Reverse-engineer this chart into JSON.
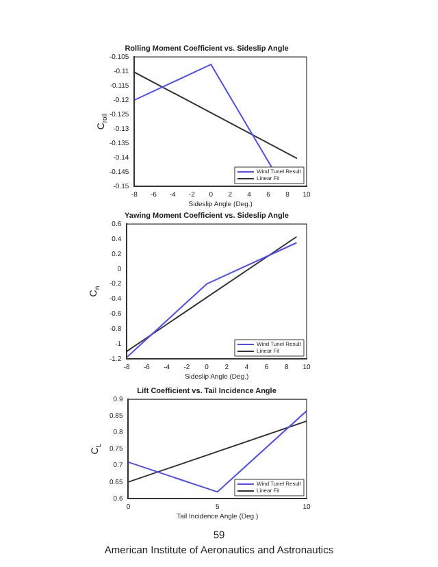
{
  "chart_data": [
    {
      "type": "line",
      "title": "Rolling Moment Coefficient vs. Sideslip Angle",
      "xlabel": "Sideslip Angle (Deg.)",
      "ylabel": "C$_{roll}$",
      "series": [
        {
          "name": "Wind Tunel Result",
          "color": "#4c4cff",
          "x": [
            -8,
            0,
            6.5
          ],
          "values": [
            -0.12,
            -0.1076,
            -0.1442
          ]
        },
        {
          "name": "Linear Fit",
          "color": "#333333",
          "x": [
            -8,
            9
          ],
          "values": [
            -0.1103,
            -0.1403
          ]
        }
      ],
      "xlim": [
        -8,
        10
      ],
      "xticks": [
        -8,
        -6,
        -4,
        -2,
        0,
        2,
        4,
        6,
        8,
        10
      ],
      "ylim": [
        -0.15,
        -0.105
      ],
      "yticks": [
        -0.15,
        -0.145,
        -0.14,
        -0.135,
        -0.13,
        -0.125,
        -0.12,
        -0.115,
        -0.11,
        -0.105
      ],
      "legend": "bottom right",
      "marker": "none",
      "grid": false
    },
    {
      "type": "line",
      "title": "Yawing Moment Coefficient vs. Sideslip Angle",
      "xlabel": "Sideslip Angle (Deg.)",
      "ylabel": "C$_{n}$",
      "series": [
        {
          "name": "Wind Tunel Result",
          "color": "#4c4cff",
          "x": [
            -8,
            0,
            9
          ],
          "values": [
            -1.18,
            -0.2,
            0.35
          ]
        },
        {
          "name": "Linear Fit",
          "color": "#333333",
          "x": [
            -8,
            9
          ],
          "values": [
            -1.1,
            0.43
          ]
        }
      ],
      "xlim": [
        -8,
        10
      ],
      "xticks": [
        -8,
        -6,
        -4,
        -2,
        0,
        2,
        4,
        6,
        8,
        10
      ],
      "ylim": [
        -1.2,
        0.6
      ],
      "yticks": [
        -1.2,
        -1,
        -0.8,
        -0.6,
        -0.4,
        -0.2,
        0,
        0.2,
        0.4,
        0.6
      ],
      "legend": "bottom right",
      "marker": "none",
      "grid": false
    },
    {
      "type": "line",
      "title": "Lift Coefficient vs. Tail Incidence Angle",
      "xlabel": "Tail Incidence Angle (Deg.)",
      "ylabel": "C$_{L}$",
      "series": [
        {
          "name": "Wind Tunel Result",
          "color": "#4c4cff",
          "x": [
            0,
            5,
            10
          ],
          "values": [
            0.71,
            0.62,
            0.865
          ]
        },
        {
          "name": "Linear Fit",
          "color": "#333333",
          "x": [
            0,
            10
          ],
          "values": [
            0.65,
            0.834
          ]
        }
      ],
      "xlim": [
        0,
        10
      ],
      "xticks": [
        0,
        5,
        10
      ],
      "ylim": [
        0.6,
        0.9
      ],
      "yticks": [
        0.6,
        0.65,
        0.7,
        0.75,
        0.8,
        0.85,
        0.9
      ],
      "legend": "bottom right",
      "marker": "none",
      "grid": false,
      "annotations": [
        "59",
        "American Institute of Aeronautics and Astronautics"
      ]
    }
  ]
}
